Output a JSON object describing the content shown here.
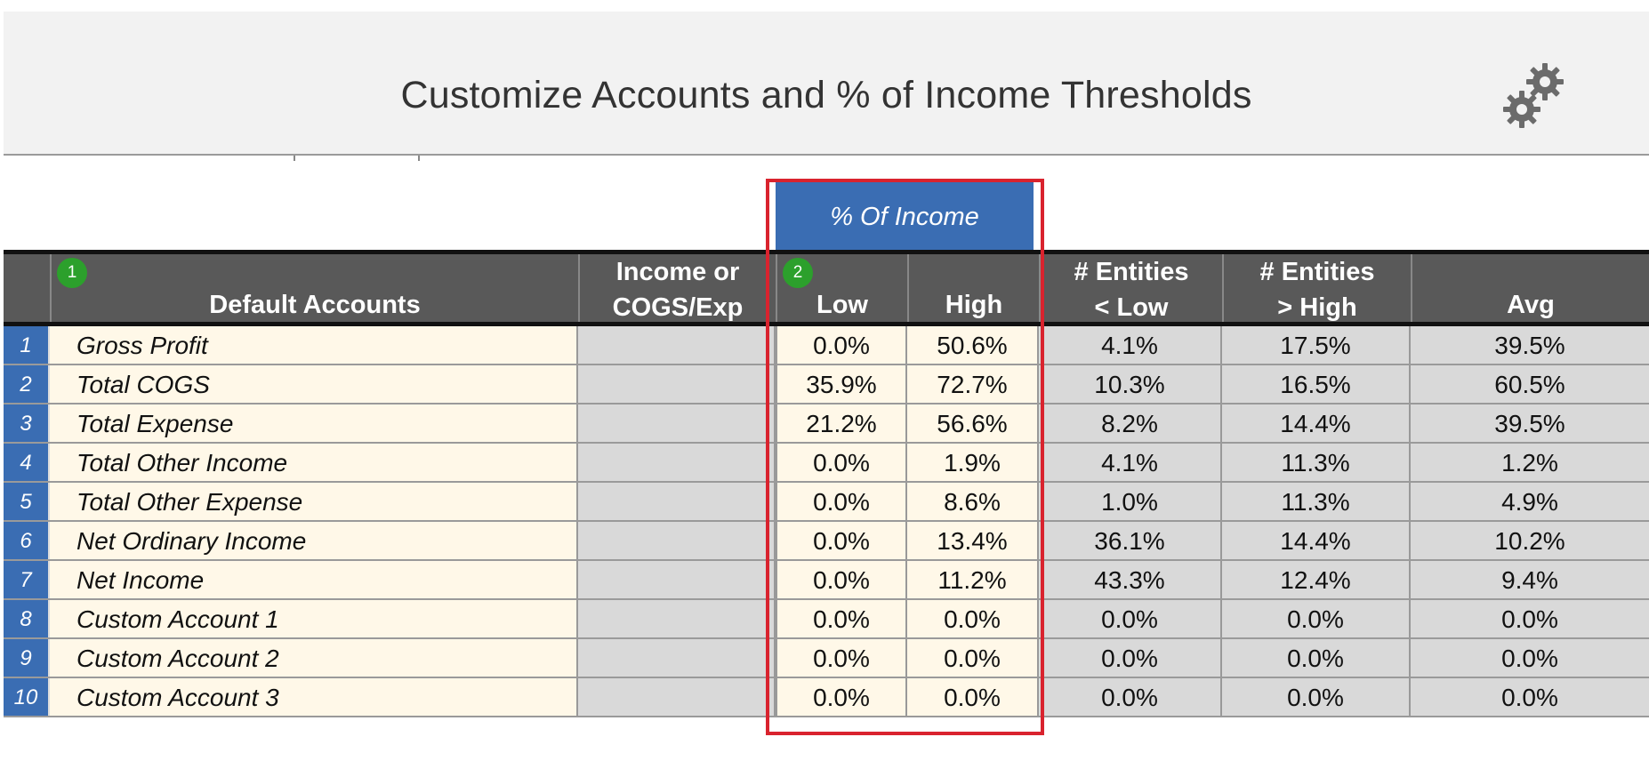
{
  "header": {
    "title": "Customize Accounts and % of Income Thresholds",
    "settings_icon": "gears-icon"
  },
  "section": {
    "pct_of_income_label": "% Of Income"
  },
  "columns": {
    "accounts": "Default Accounts",
    "type_line1": "Income or",
    "type_line2": "COGS/Exp",
    "low": "Low",
    "high": "High",
    "elow_line1": "# Entities",
    "elow_line2": "< Low",
    "ehigh_line1": "# Entities",
    "ehigh_line2": "> High",
    "avg": "Avg"
  },
  "badges": {
    "one": "1",
    "two": "2"
  },
  "rows": [
    {
      "num": "1",
      "name": "Gross Profit",
      "type": "",
      "low": "0.0%",
      "high": "50.6%",
      "elow": "4.1%",
      "ehigh": "17.5%",
      "avg": "39.5%"
    },
    {
      "num": "2",
      "name": "Total COGS",
      "type": "",
      "low": "35.9%",
      "high": "72.7%",
      "elow": "10.3%",
      "ehigh": "16.5%",
      "avg": "60.5%"
    },
    {
      "num": "3",
      "name": "Total Expense",
      "type": "",
      "low": "21.2%",
      "high": "56.6%",
      "elow": "8.2%",
      "ehigh": "14.4%",
      "avg": "39.5%"
    },
    {
      "num": "4",
      "name": "Total Other Income",
      "type": "",
      "low": "0.0%",
      "high": "1.9%",
      "elow": "4.1%",
      "ehigh": "11.3%",
      "avg": "1.2%"
    },
    {
      "num": "5",
      "name": "Total Other Expense",
      "type": "",
      "low": "0.0%",
      "high": "8.6%",
      "elow": "1.0%",
      "ehigh": "11.3%",
      "avg": "4.9%"
    },
    {
      "num": "6",
      "name": "Net Ordinary Income",
      "type": "",
      "low": "0.0%",
      "high": "13.4%",
      "elow": "36.1%",
      "ehigh": "14.4%",
      "avg": "10.2%"
    },
    {
      "num": "7",
      "name": "Net Income",
      "type": "",
      "low": "0.0%",
      "high": "11.2%",
      "elow": "43.3%",
      "ehigh": "12.4%",
      "avg": "9.4%"
    },
    {
      "num": "8",
      "name": "Custom Account 1",
      "type": "",
      "low": "0.0%",
      "high": "0.0%",
      "elow": "0.0%",
      "ehigh": "0.0%",
      "avg": "0.0%"
    },
    {
      "num": "9",
      "name": "Custom Account 2",
      "type": "",
      "low": "0.0%",
      "high": "0.0%",
      "elow": "0.0%",
      "ehigh": "0.0%",
      "avg": "0.0%"
    },
    {
      "num": "10",
      "name": "Custom Account 3",
      "type": "",
      "low": "0.0%",
      "high": "0.0%",
      "elow": "0.0%",
      "ehigh": "0.0%",
      "avg": "0.0%"
    }
  ],
  "colors": {
    "accent_blue": "#3a6db3",
    "header_gray": "#595959",
    "input_cream": "#fff8e8",
    "calc_gray": "#d9d9d9",
    "highlight_red": "#d9232e",
    "badge_green": "#2ca02c"
  }
}
